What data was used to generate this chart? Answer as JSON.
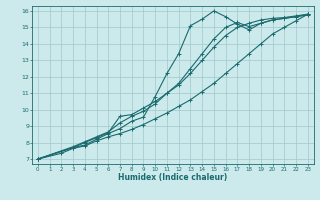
{
  "xlabel": "Humidex (Indice chaleur)",
  "bg_color": "#cce9ec",
  "grid_color": "#a0c8cc",
  "line_color": "#1a6b6e",
  "xlim": [
    -0.5,
    23.5
  ],
  "ylim": [
    6.7,
    16.3
  ],
  "xticks": [
    0,
    1,
    2,
    3,
    4,
    5,
    6,
    7,
    8,
    9,
    10,
    11,
    12,
    13,
    14,
    15,
    16,
    17,
    18,
    19,
    20,
    21,
    22,
    23
  ],
  "yticks": [
    7,
    8,
    9,
    10,
    11,
    12,
    13,
    14,
    15,
    16
  ],
  "series1_x": [
    0,
    2,
    3,
    4,
    5,
    6,
    7,
    8,
    9,
    10,
    11,
    12,
    13,
    14,
    15,
    16,
    17,
    18,
    19,
    20,
    21,
    22,
    23
  ],
  "series1_y": [
    7.0,
    7.35,
    7.65,
    7.8,
    8.1,
    8.35,
    8.55,
    8.8,
    9.1,
    9.45,
    9.8,
    10.2,
    10.6,
    11.1,
    11.6,
    12.2,
    12.8,
    13.4,
    14.0,
    14.6,
    15.0,
    15.4,
    15.8
  ],
  "series2_x": [
    0,
    3,
    4,
    5,
    6,
    7,
    8,
    9,
    10,
    11,
    12,
    13,
    14,
    15,
    16,
    17,
    18,
    19,
    20,
    21,
    22,
    23
  ],
  "series2_y": [
    7.0,
    7.7,
    8.0,
    8.3,
    8.6,
    9.6,
    9.7,
    10.1,
    10.5,
    11.0,
    11.5,
    12.2,
    13.0,
    13.8,
    14.5,
    15.0,
    15.25,
    15.45,
    15.55,
    15.6,
    15.7,
    15.8
  ],
  "series3_x": [
    0,
    3,
    4,
    5,
    6,
    7,
    8,
    9,
    10,
    11,
    12,
    13,
    14,
    15,
    16,
    17,
    18,
    19,
    20,
    21,
    22,
    23
  ],
  "series3_y": [
    7.0,
    7.75,
    8.05,
    8.35,
    8.65,
    9.2,
    9.6,
    9.9,
    10.35,
    11.0,
    11.6,
    12.5,
    13.4,
    14.3,
    15.0,
    15.3,
    15.05,
    15.25,
    15.45,
    15.55,
    15.65,
    15.8
  ],
  "series4_x": [
    0,
    3,
    4,
    5,
    6,
    7,
    8,
    9,
    10,
    11,
    12,
    13,
    14,
    15,
    16,
    17,
    18,
    19,
    20,
    21,
    22,
    23
  ],
  "series4_y": [
    7.0,
    7.7,
    7.85,
    8.2,
    8.55,
    8.85,
    9.3,
    9.55,
    10.8,
    12.2,
    13.4,
    15.1,
    15.5,
    16.0,
    15.65,
    15.2,
    14.85,
    15.25,
    15.45,
    15.55,
    15.65,
    15.75
  ]
}
